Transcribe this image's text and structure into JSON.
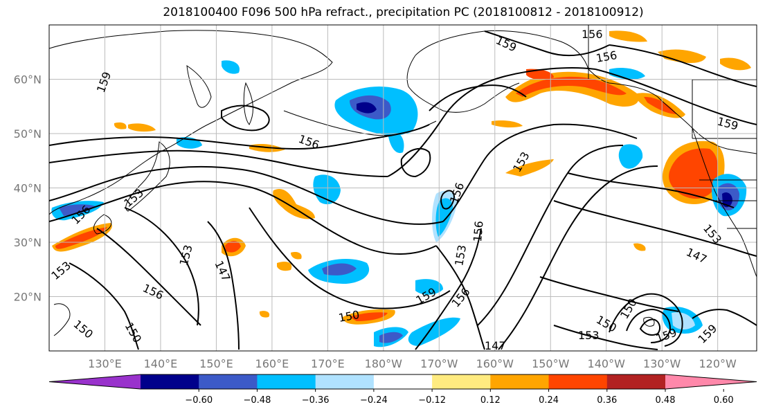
{
  "title": "2018100400 F096 500 hPa refract., precipitation PC (2018100812 - 2018100912)",
  "map": {
    "lat_labels": [
      "60°N",
      "50°N",
      "40°N",
      "30°N",
      "20°N"
    ],
    "lat_values": [
      60,
      50,
      40,
      30,
      20
    ],
    "lon_labels": [
      "130°E",
      "140°E",
      "150°E",
      "160°E",
      "170°E",
      "180°W",
      "170°W",
      "160°W",
      "150°W",
      "140°W",
      "130°W",
      "120°W"
    ],
    "lon_values": [
      130,
      140,
      150,
      160,
      170,
      180,
      190,
      200,
      210,
      220,
      230,
      240
    ],
    "lon_range": [
      120,
      247
    ],
    "lat_range": [
      10,
      70
    ],
    "contour_labels": [
      "159",
      "156",
      "156",
      "159",
      "156",
      "153",
      "156",
      "156",
      "153",
      "156",
      "153",
      "147",
      "156",
      "150",
      "150",
      "159",
      "156",
      "150",
      "147",
      "153",
      "159",
      "153",
      "159",
      "150",
      "147",
      "153",
      "159",
      "150",
      "153"
    ],
    "contour_color": "#000000"
  },
  "colorbar": {
    "ticks": [
      "−0.60",
      "−0.48",
      "−0.36",
      "−0.24",
      "−0.12",
      "0.12",
      "0.24",
      "0.36",
      "0.48",
      "0.60"
    ],
    "colors": [
      "#9932cc",
      "#00008b",
      "#3c5ac8",
      "#00bfff",
      "#b0e2ff",
      "#ffffff",
      "#ffeb80",
      "#ffa500",
      "#ff4500",
      "#b22222",
      "#ff88aa"
    ]
  }
}
